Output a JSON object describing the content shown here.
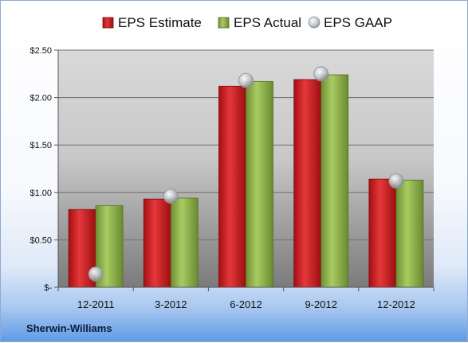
{
  "chart_data": {
    "type": "bar",
    "categories": [
      "12-2011",
      "3-2012",
      "6-2012",
      "9-2012",
      "12-2012"
    ],
    "series": [
      {
        "name": "EPS Estimate",
        "values": [
          0.82,
          0.93,
          2.12,
          2.19,
          1.14
        ],
        "color": "#c8191e"
      },
      {
        "name": "EPS Actual",
        "values": [
          0.86,
          0.94,
          2.17,
          2.24,
          1.13
        ],
        "color": "#8cb04a"
      }
    ],
    "markers": {
      "name": "EPS GAAP",
      "values": [
        0.14,
        0.96,
        2.18,
        2.25,
        1.12
      ],
      "color": "#b8bec8"
    },
    "y_ticks": [
      {
        "value": 0,
        "label": "$-"
      },
      {
        "value": 0.5,
        "label": "$0.50"
      },
      {
        "value": 1.0,
        "label": "$1.00"
      },
      {
        "value": 1.5,
        "label": "$1.50"
      },
      {
        "value": 2.0,
        "label": "$2.00"
      },
      {
        "value": 2.5,
        "label": "$2.50"
      }
    ],
    "ylim": [
      0,
      2.5
    ],
    "grid": true,
    "legend_position": "top",
    "company": "Sherwin-Williams"
  }
}
